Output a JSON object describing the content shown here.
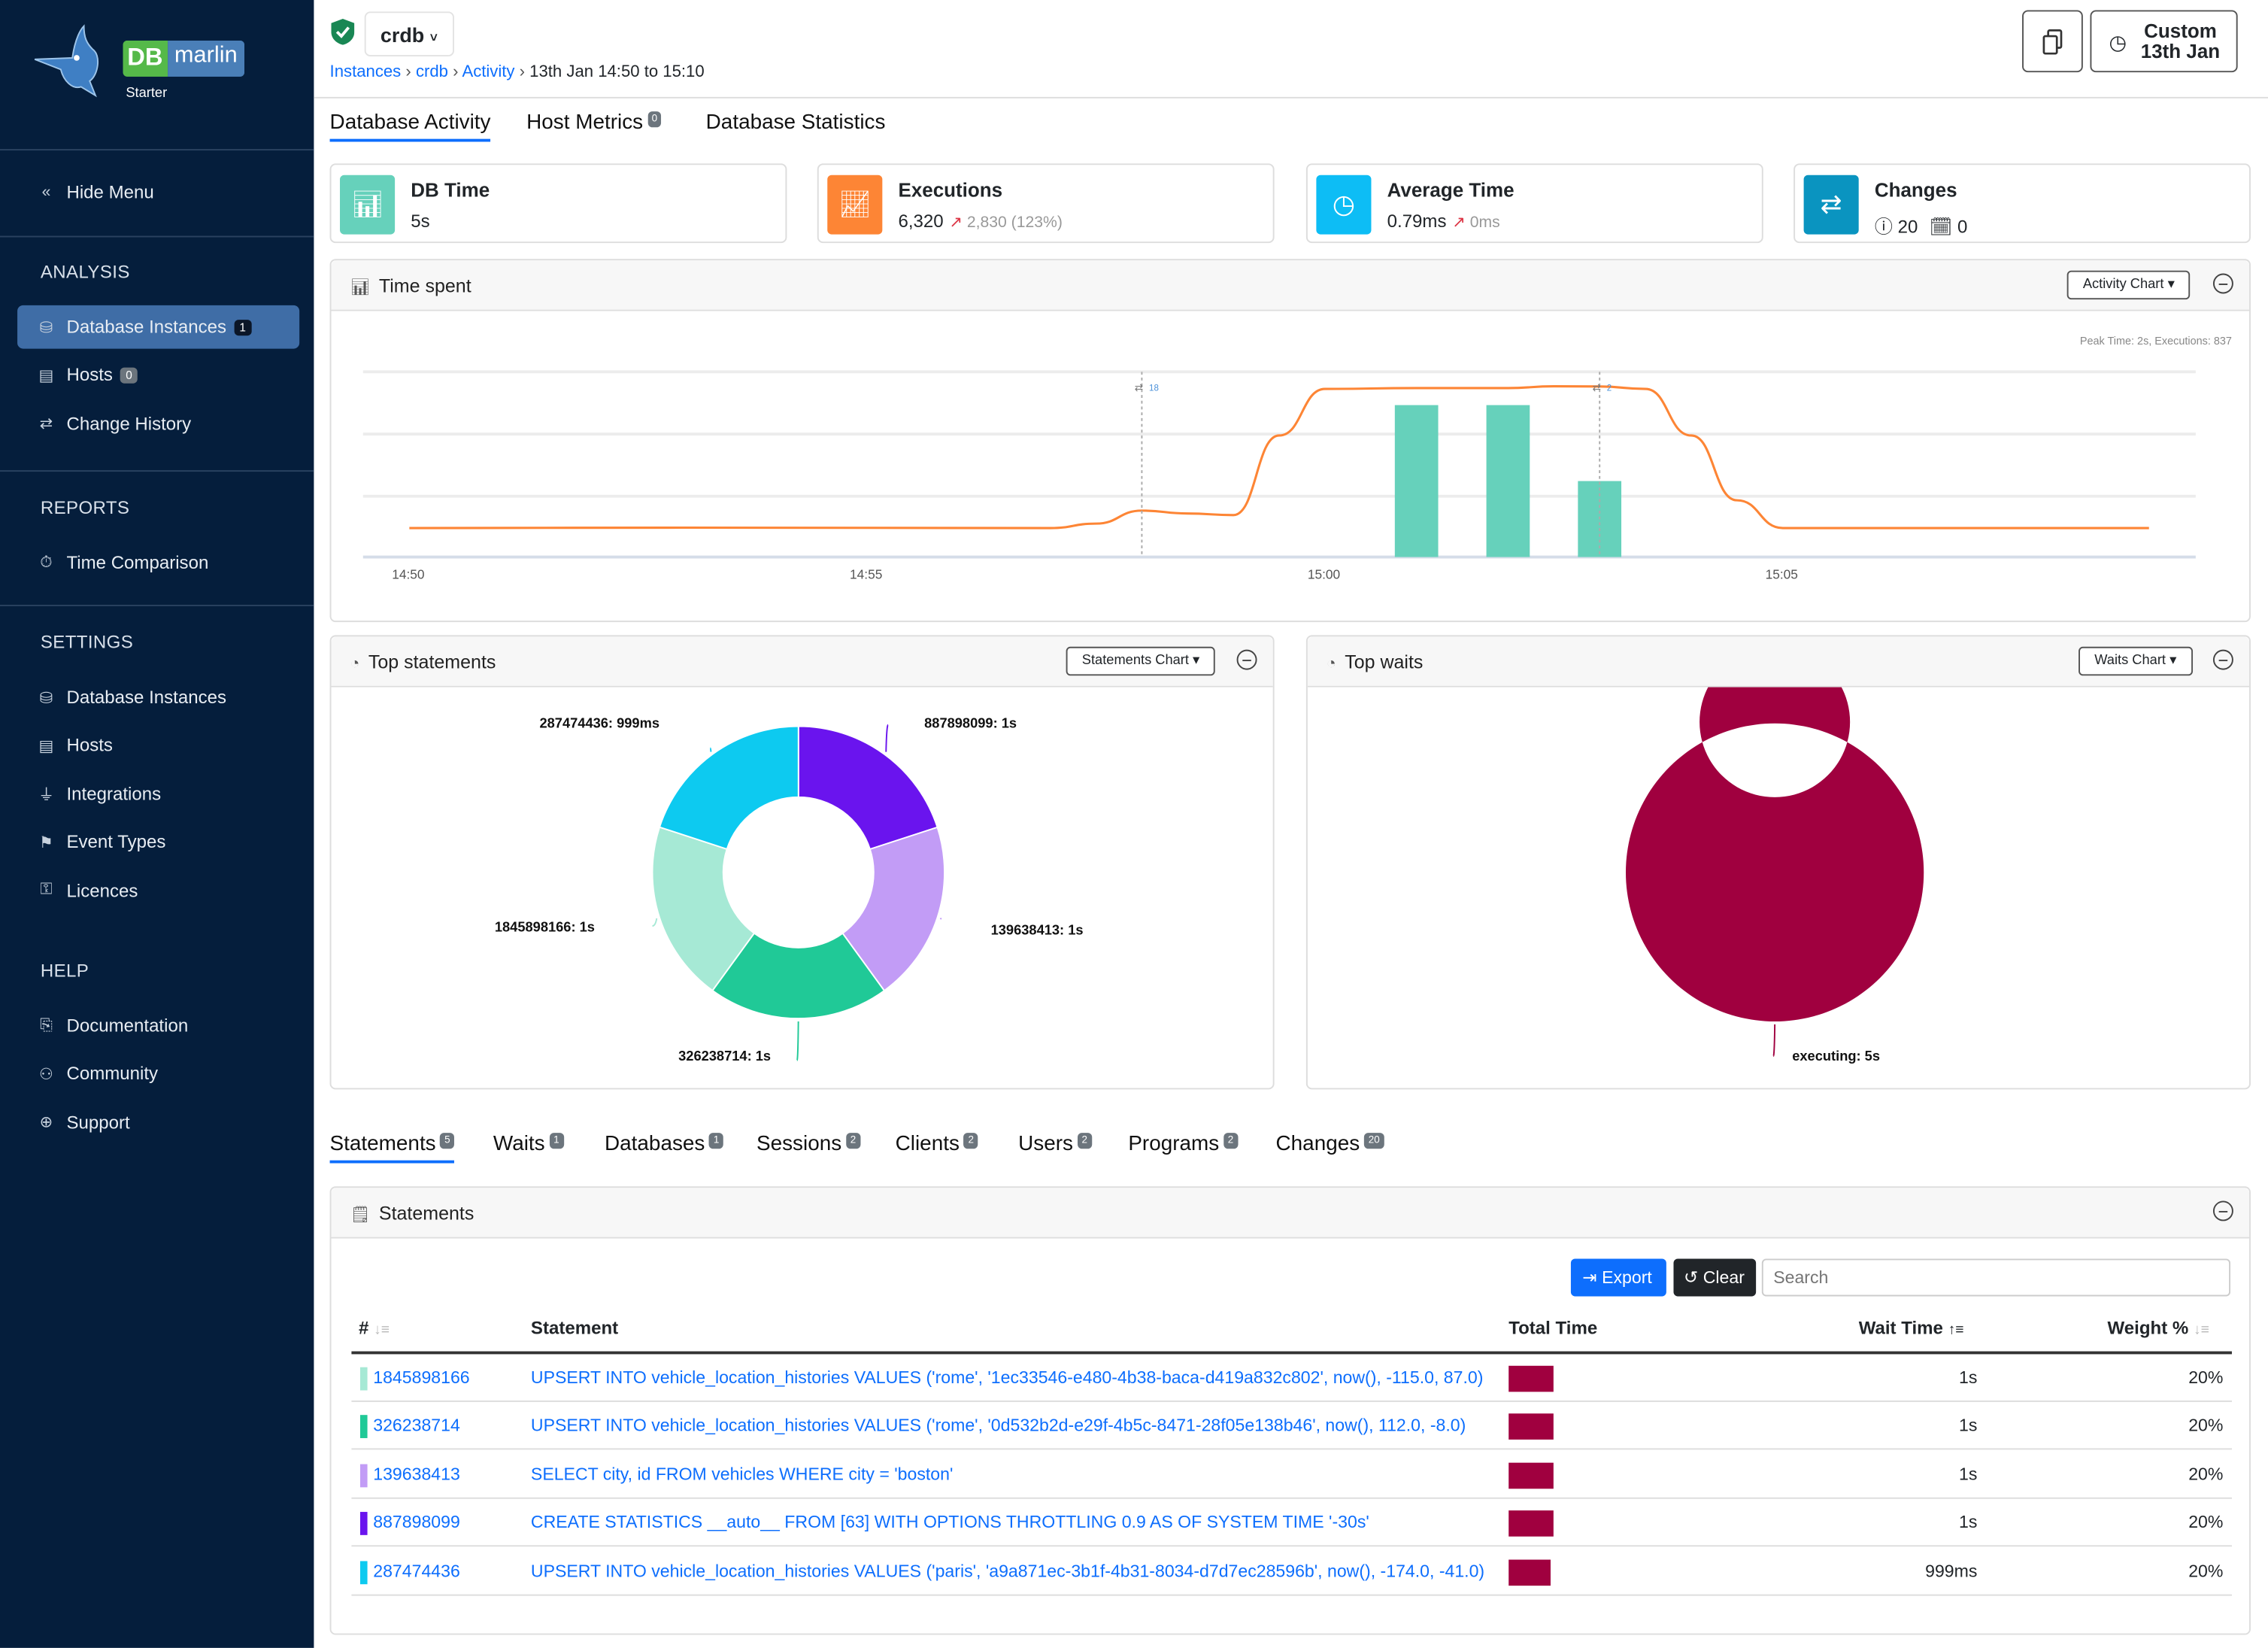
{
  "brand": {
    "name_db": "DB",
    "name_rest": "marlin",
    "edition": "Starter"
  },
  "sidebar": {
    "hide_menu": "Hide Menu",
    "sections": [
      {
        "title": "ANALYSIS",
        "items": [
          {
            "label": "Database Instances",
            "badge": "1",
            "active": true,
            "icon": "database-icon"
          },
          {
            "label": "Hosts",
            "badge": "0",
            "icon": "server-icon"
          },
          {
            "label": "Change History",
            "icon": "arrows-swap-icon"
          }
        ]
      },
      {
        "title": "REPORTS",
        "items": [
          {
            "label": "Time Comparison",
            "icon": "stopwatch-icon"
          }
        ]
      },
      {
        "title": "SETTINGS",
        "items": [
          {
            "label": "Database Instances",
            "icon": "database-icon"
          },
          {
            "label": "Hosts",
            "icon": "server-icon"
          },
          {
            "label": "Integrations",
            "icon": "plug-icon"
          },
          {
            "label": "Event Types",
            "icon": "event-icon"
          },
          {
            "label": "Licences",
            "icon": "key-icon"
          }
        ]
      },
      {
        "title": "HELP",
        "items": [
          {
            "label": "Documentation",
            "icon": "book-icon"
          },
          {
            "label": "Community",
            "icon": "people-icon"
          },
          {
            "label": "Support",
            "icon": "globe-icon"
          }
        ]
      }
    ]
  },
  "header": {
    "instance": "crdb",
    "breadcrumb": [
      "Instances",
      "crdb",
      "Activity"
    ],
    "breadcrumb_current": "13th Jan 14:50 to 15:10",
    "range_label": "Custom",
    "range_date": "13th Jan"
  },
  "tabs": [
    {
      "label": "Database Activity",
      "active": true
    },
    {
      "label": "Host Metrics",
      "badge": "0"
    },
    {
      "label": "Database Statistics"
    }
  ],
  "kpis": [
    {
      "title": "DB Time",
      "value": "5s",
      "color": "#66d1bb",
      "icon": "bar-chart-icon"
    },
    {
      "title": "Executions",
      "value": "6,320",
      "delta": "2,830 (123%)",
      "color": "#fd8535",
      "icon": "trend-up-icon"
    },
    {
      "title": "Average Time",
      "value": "0.79ms",
      "delta": "0ms",
      "color": "#0dbdf5",
      "icon": "clock-icon"
    },
    {
      "title": "Changes",
      "info_count": "20",
      "calendar_count": "0",
      "color": "#0a94c0",
      "icon": "arrows-swap-icon"
    }
  ],
  "time_spent": {
    "title": "Time spent",
    "chart_button": "Activity Chart"
  },
  "chart_data": [
    {
      "type": "bar+line",
      "title": "",
      "peak_note": "Peak Time: 2s, Executions: 837",
      "x_ticks": [
        "14:50",
        "14:55",
        "15:00",
        "15:05"
      ],
      "bars": {
        "unit": "s",
        "color": "#66d1bb",
        "points": [
          [
            "15:01",
            2
          ],
          [
            "15:02",
            2
          ],
          [
            "15:03",
            1
          ]
        ]
      },
      "line": {
        "unit": "executions",
        "color": "#fd8535",
        "points": [
          [
            "14:50",
            143
          ],
          [
            "14:53",
            145
          ],
          [
            "14:57",
            143
          ],
          [
            "14:57:30",
            165
          ],
          [
            "14:58",
            229
          ],
          [
            "14:58:30",
            215
          ],
          [
            "14:59",
            207
          ],
          [
            "14:59:30",
            600
          ],
          [
            "15:00",
            830
          ],
          [
            "15:01",
            834
          ],
          [
            "15:02",
            834
          ],
          [
            "15:02:30",
            843
          ],
          [
            "15:03",
            842
          ],
          [
            "15:03:30",
            830
          ],
          [
            "15:04",
            600
          ],
          [
            "15:04:30",
            280
          ],
          [
            "15:05",
            143
          ],
          [
            "15:09",
            143
          ]
        ]
      },
      "change_markers": [
        {
          "time": "14:58",
          "count": "18"
        },
        {
          "time": "15:03",
          "count": "2"
        }
      ],
      "grid": true
    },
    {
      "type": "pie",
      "donut": true,
      "title": "Top statements",
      "chart_button": "Statements Chart",
      "slices": [
        {
          "label": "887898099: 1s",
          "value": 1,
          "color": "#6a14ee"
        },
        {
          "label": "139638413: 1s",
          "value": 1,
          "color": "#c29cf6"
        },
        {
          "label": "326238714: 1s",
          "value": 1,
          "color": "#20c997"
        },
        {
          "label": "1845898166: 1s",
          "value": 1,
          "color": "#a6e9d5"
        },
        {
          "label": "287474436: 999ms",
          "value": 0.999,
          "color": "#0dcaf0"
        }
      ]
    },
    {
      "type": "pie",
      "donut": true,
      "title": "Top waits",
      "chart_button": "Waits Chart",
      "slices": [
        {
          "label": "executing: 5s",
          "value": 5,
          "color": "#a0003f"
        }
      ]
    }
  ],
  "bottom_tabs": [
    {
      "label": "Statements",
      "badge": "5",
      "active": true
    },
    {
      "label": "Waits",
      "badge": "1"
    },
    {
      "label": "Databases",
      "badge": "1"
    },
    {
      "label": "Sessions",
      "badge": "2"
    },
    {
      "label": "Clients",
      "badge": "2"
    },
    {
      "label": "Users",
      "badge": "2"
    },
    {
      "label": "Programs",
      "badge": "2"
    },
    {
      "label": "Changes",
      "badge": "20"
    }
  ],
  "statements": {
    "title": "Statements",
    "export": "Export",
    "clear": "Clear",
    "search_placeholder": "Search",
    "columns": [
      "#",
      "Statement",
      "Total Time",
      "Wait Time",
      "Weight %"
    ],
    "rows": [
      {
        "id": "1845898166",
        "statement": "UPSERT INTO vehicle_location_histories VALUES ('rome', '1ec33546-e480-4b38-baca-d419a832c802', now(), -115.0, 87.0)",
        "total_time_fraction": 1,
        "wait_time": "1s",
        "weight": "20%",
        "color": "#a6e9d5"
      },
      {
        "id": "326238714",
        "statement": "UPSERT INTO vehicle_location_histories VALUES ('rome', '0d532b2d-e29f-4b5c-8471-28f05e138b46', now(), 112.0, -8.0)",
        "total_time_fraction": 1,
        "wait_time": "1s",
        "weight": "20%",
        "color": "#20c997"
      },
      {
        "id": "139638413",
        "statement": "SELECT city, id FROM vehicles WHERE city = 'boston'",
        "total_time_fraction": 1,
        "wait_time": "1s",
        "weight": "20%",
        "color": "#c29cf6"
      },
      {
        "id": "887898099",
        "statement": "CREATE STATISTICS __auto__ FROM [63] WITH OPTIONS THROTTLING 0.9 AS OF SYSTEM TIME '-30s'",
        "total_time_fraction": 1,
        "wait_time": "1s",
        "weight": "20%",
        "color": "#6a14ee"
      },
      {
        "id": "287474436",
        "statement": "UPSERT INTO vehicle_location_histories VALUES ('paris', 'a9a871ec-3b1f-4b31-8034-d7d7ec28596b', now(), -174.0, -41.0)",
        "total_time_fraction": 0.999,
        "wait_time": "999ms",
        "weight": "20%",
        "color": "#0dcaf0"
      }
    ]
  }
}
